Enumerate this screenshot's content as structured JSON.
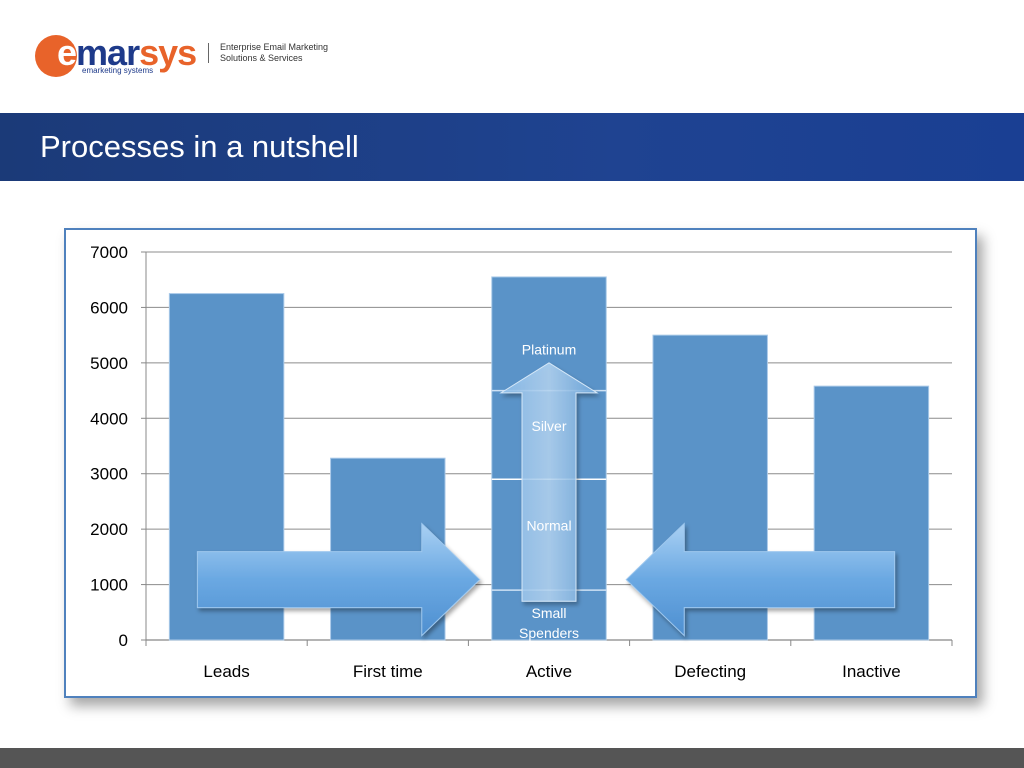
{
  "header": {
    "logo_word_1": "e",
    "logo_word_2": "mar",
    "logo_word_3": "sys",
    "logo_sub": "emarketing systems",
    "tagline_line1": "Enterprise Email Marketing",
    "tagline_line2": "Solutions & Services"
  },
  "slide": {
    "title": "Processes in a nutshell"
  },
  "colors": {
    "brand_orange": "#e8632a",
    "brand_navy": "#1e3a8a",
    "title_band": "#1f4391",
    "bar": "#5a93c8",
    "arrow": "#7ab3e6",
    "footer": "#555555"
  },
  "chart_data": {
    "type": "bar",
    "categories": [
      "Leads",
      "First time",
      "Active",
      "Defecting",
      "Inactive"
    ],
    "values": [
      6250,
      3280,
      6550,
      5500,
      4580
    ],
    "ylim": [
      0,
      7000
    ],
    "yticks": [
      0,
      1000,
      2000,
      3000,
      4000,
      5000,
      6000,
      7000
    ],
    "grid": true,
    "title": "",
    "xlabel": "",
    "ylabel": "",
    "active_segments": [
      {
        "label_lines": [
          "Small",
          "Spenders"
        ],
        "from": 0,
        "to": 900
      },
      {
        "label_lines": [
          "Normal"
        ],
        "from": 900,
        "to": 2900
      },
      {
        "label_lines": [
          "Silver"
        ],
        "from": 2900,
        "to": 4500
      },
      {
        "label_lines": [
          "Platinum"
        ],
        "from": 4500,
        "to": 6550
      }
    ],
    "annotations": [
      {
        "type": "arrow",
        "direction": "right",
        "from_category": "Leads",
        "to_category": "Active",
        "level": 1000
      },
      {
        "type": "arrow",
        "direction": "left",
        "from_category": "Inactive",
        "to_category": "Active",
        "level": 1000
      },
      {
        "type": "arrow",
        "direction": "up",
        "category": "Active",
        "from": 700,
        "to": 5000
      }
    ]
  }
}
